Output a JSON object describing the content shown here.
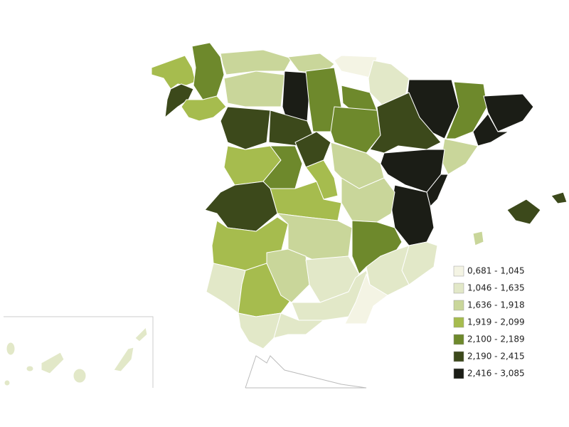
{
  "legend": {
    "items": [
      {
        "label": "0,681 - 1,045",
        "color": "#f4f4e4"
      },
      {
        "label": "1,046 - 1,635",
        "color": "#e2e8c8"
      },
      {
        "label": "1,636 - 1,918",
        "color": "#c9d69a"
      },
      {
        "label": "1,919 - 2,099",
        "color": "#a6bc4e"
      },
      {
        "label": "2,100 - 2,189",
        "color": "#6e892c"
      },
      {
        "label": "2,190 - 2,415",
        "color": "#3c491b"
      },
      {
        "label": "2,416 - 3,085",
        "color": "#1b1d16"
      }
    ]
  }
}
